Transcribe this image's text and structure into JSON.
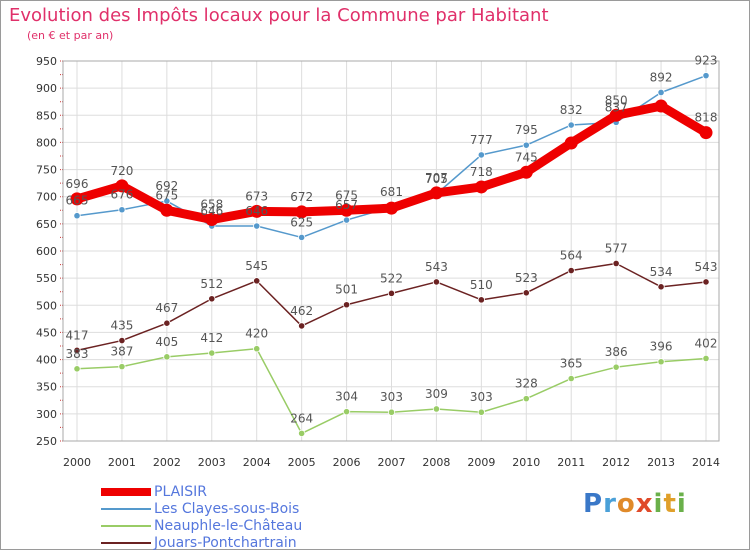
{
  "title": "Evolution des Impôts locaux pour la Commune par Habitant",
  "subtitle": "(en € et par an)",
  "logo_text": "Proxiti",
  "chart_data": {
    "type": "line",
    "title": "Evolution des Impôts locaux pour la Commune par Habitant",
    "subtitle": "(en € et par an)",
    "x": [
      "2000",
      "2001",
      "2002",
      "2003",
      "2004",
      "2005",
      "2006",
      "2007",
      "2008",
      "2009",
      "2010",
      "2011",
      "2012",
      "2013",
      "2014"
    ],
    "ylim": [
      250,
      950
    ],
    "yticks": [
      "250",
      "300",
      "350",
      "400",
      "450",
      "500",
      "550",
      "600",
      "650",
      "700",
      "750",
      "800",
      "850",
      "900",
      "950"
    ],
    "grid": true,
    "legend_position": "bottom-left",
    "series": [
      {
        "name": "PLAISIR",
        "color": "#ee0000",
        "values": [
          696,
          720,
          675,
          658,
          673,
          672,
          675,
          679,
          707,
          718,
          745,
          799,
          850,
          867,
          818
        ],
        "labels": [
          "696",
          "720",
          "675",
          "658",
          "673",
          "672",
          "675",
          "",
          "707",
          "718",
          "745",
          "",
          "850",
          "",
          "818"
        ]
      },
      {
        "name": "Les Clayes-sous-Bois",
        "color": "#5599cc",
        "values": [
          665,
          676,
          692,
          646,
          646,
          625,
          657,
          681,
          705,
          777,
          795,
          832,
          837,
          892,
          923
        ],
        "labels": [
          "665",
          "676",
          "692",
          "646",
          "646",
          "625",
          "657",
          "681",
          "705",
          "777",
          "795",
          "832",
          "837",
          "892",
          "923"
        ]
      },
      {
        "name": "Neauphle-le-Château",
        "color": "#99cc66",
        "values": [
          383,
          387,
          405,
          412,
          420,
          264,
          304,
          303,
          309,
          303,
          328,
          365,
          386,
          396,
          402
        ],
        "labels": [
          "383",
          "387",
          "405",
          "412",
          "420",
          "264",
          "304",
          "303",
          "309",
          "303",
          "328",
          "365",
          "386",
          "396",
          "402"
        ]
      },
      {
        "name": "Jouars-Pontchartrain",
        "color": "#6b2222",
        "values": [
          417,
          435,
          467,
          512,
          545,
          462,
          501,
          522,
          543,
          510,
          523,
          564,
          577,
          534,
          543
        ],
        "labels": [
          "417",
          "435",
          "467",
          "512",
          "545",
          "462",
          "501",
          "522",
          "543",
          "510",
          "523",
          "564",
          "577",
          "534",
          "543"
        ]
      }
    ]
  }
}
